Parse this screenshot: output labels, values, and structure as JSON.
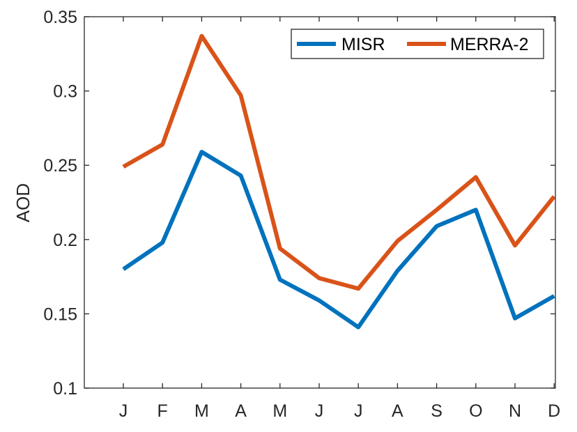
{
  "chart_data": {
    "type": "line",
    "title": "",
    "xlabel": "",
    "ylabel": "AOD",
    "categories": [
      "J",
      "F",
      "M",
      "A",
      "M",
      "J",
      "J",
      "A",
      "S",
      "O",
      "N",
      "D"
    ],
    "ylim": [
      0.1,
      0.35
    ],
    "yticks": [
      0.1,
      0.15,
      0.2,
      0.25,
      0.3,
      0.35
    ],
    "ytick_labels": [
      "0.1",
      "0.15",
      "0.2",
      "0.25",
      "0.3",
      "0.35"
    ],
    "grid": false,
    "legend_position": "top-right",
    "series": [
      {
        "name": "MISR",
        "color": "#0072BD",
        "values": [
          0.18,
          0.198,
          0.259,
          0.243,
          0.173,
          0.159,
          0.141,
          0.179,
          0.209,
          0.22,
          0.147,
          0.162
        ]
      },
      {
        "name": "MERRA-2",
        "color": "#D95319",
        "values": [
          0.249,
          0.264,
          0.337,
          0.297,
          0.194,
          0.174,
          0.167,
          0.199,
          0.22,
          0.242,
          0.196,
          0.229
        ]
      }
    ]
  }
}
